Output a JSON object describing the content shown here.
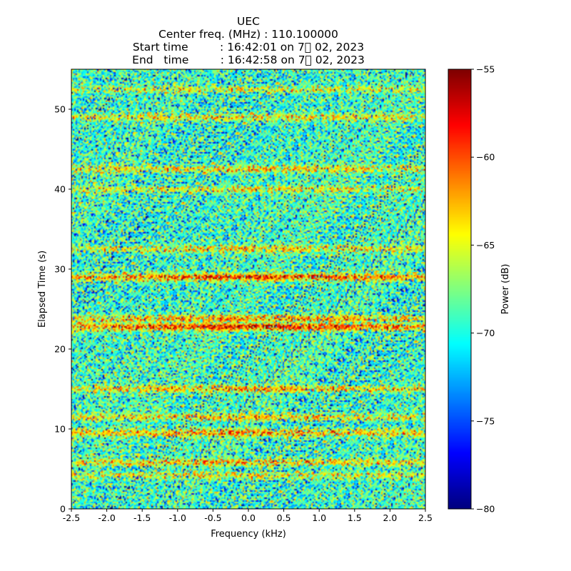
{
  "chart_data": {
    "type": "heatmap",
    "title_lines": [
      "UEC",
      "Center freq. (MHz) : 110.100000",
      "Start time         : 16:42:01 on 7\u0000 02, 2023",
      "End   time         : 16:42:58 on 7\u0000 02, 2023"
    ],
    "xlabel": "Frequency (kHz)",
    "ylabel": "Elapsed Time (s)",
    "xlim": [
      -2.5,
      2.5
    ],
    "ylim": [
      0,
      55
    ],
    "x_ticks": [
      -2.5,
      -2.0,
      -1.5,
      -1.0,
      -0.5,
      0.0,
      0.5,
      1.0,
      1.5,
      2.0,
      2.5
    ],
    "x_tick_labels": [
      "-2.5",
      "-2.0",
      "-1.5",
      "-1.0",
      "-0.5",
      "0.0",
      "0.5",
      "1.0",
      "1.5",
      "2.0",
      "2.5"
    ],
    "y_ticks": [
      0,
      10,
      20,
      30,
      40,
      50
    ],
    "y_tick_labels": [
      "0",
      "10",
      "20",
      "30",
      "40",
      "50"
    ],
    "colorbar": {
      "label": "Power (dB)",
      "range": [
        -80,
        -55
      ],
      "ticks": [
        -80,
        -75,
        -70,
        -65,
        -60,
        -55
      ],
      "tick_labels": [
        "−80",
        "−75",
        "−70",
        "−65",
        "−60",
        "−55"
      ],
      "colormap": "jet"
    },
    "background_level_db": -69,
    "strong_bands": [
      {
        "time_s": 22.8,
        "peak_db": -56
      },
      {
        "time_s": 29.0,
        "peak_db": -57
      },
      {
        "time_s": 23.8,
        "peak_db": -60
      },
      {
        "time_s": 15.0,
        "peak_db": -61
      },
      {
        "time_s": 9.5,
        "peak_db": -60
      },
      {
        "time_s": 11.5,
        "peak_db": -62
      },
      {
        "time_s": 5.8,
        "peak_db": -61
      },
      {
        "time_s": 4.2,
        "peak_db": -63
      },
      {
        "time_s": 32.5,
        "peak_db": -62
      },
      {
        "time_s": 42.5,
        "peak_db": -62
      },
      {
        "time_s": 40.0,
        "peak_db": -63
      },
      {
        "time_s": 49.0,
        "peak_db": -63
      },
      {
        "time_s": 52.5,
        "peak_db": -64
      }
    ],
    "grid": false,
    "legend": "colorbar-right"
  }
}
